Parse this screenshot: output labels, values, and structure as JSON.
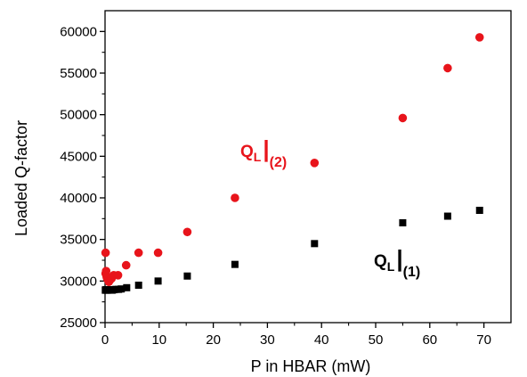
{
  "chart_data": {
    "type": "scatter",
    "xlabel": "P in HBAR (mW)",
    "ylabel": "Loaded Q-factor",
    "xlim": [
      0,
      75
    ],
    "ylim": [
      25000,
      62500
    ],
    "xticks": [
      0,
      10,
      20,
      30,
      40,
      50,
      60,
      70
    ],
    "yticks": [
      25000,
      30000,
      35000,
      40000,
      45000,
      50000,
      55000,
      60000
    ],
    "grid": false,
    "legend": "none",
    "series": [
      {
        "label_main": "Q",
        "label_sub": "L",
        "label_index": "(1)",
        "color": "#000000",
        "marker": "square",
        "x": [
          0.05,
          0.1,
          0.2,
          0.3,
          0.5,
          0.7,
          1.0,
          1.3,
          1.6,
          2.0,
          2.5,
          3.0,
          4.0,
          6.2,
          9.8,
          15.2,
          24.0,
          38.7,
          55.0,
          63.3,
          69.2
        ],
        "y": [
          28900,
          28950,
          28900,
          28950,
          28900,
          28950,
          28950,
          28900,
          28950,
          29000,
          29000,
          29050,
          29200,
          29500,
          30000,
          30600,
          32000,
          34500,
          37000,
          37800,
          38500
        ]
      },
      {
        "label_main": "Q",
        "label_sub": "L",
        "label_index": "(2)",
        "color": "#e8141b",
        "marker": "circle",
        "x": [
          0.1,
          0.1,
          0.2,
          0.3,
          0.4,
          0.5,
          0.7,
          0.9,
          1.2,
          1.6,
          2.4,
          3.9,
          6.2,
          9.8,
          15.2,
          24.0,
          38.7,
          55.0,
          63.3,
          69.2
        ],
        "y": [
          33400,
          30900,
          31200,
          30500,
          30300,
          30200,
          29900,
          30100,
          30300,
          30700,
          30700,
          31900,
          33400,
          33400,
          35900,
          40000,
          44200,
          49600,
          55600,
          59300
        ]
      }
    ]
  }
}
